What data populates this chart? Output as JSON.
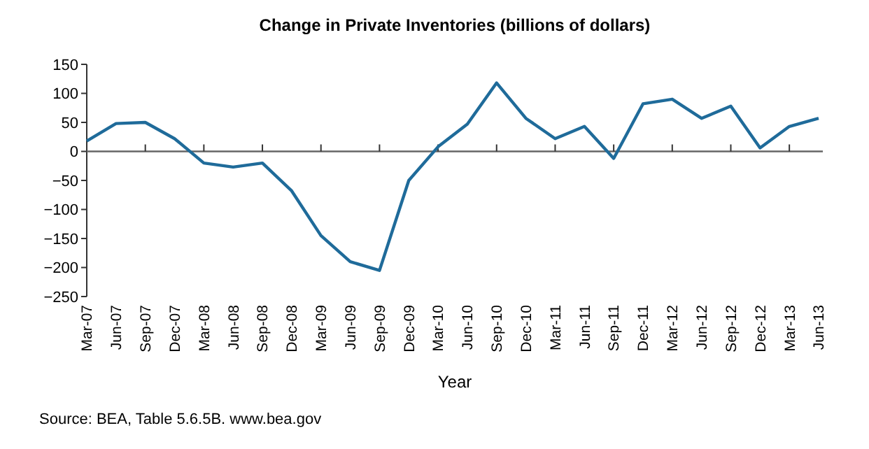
{
  "chart_data": {
    "type": "line",
    "title": "Change in Private Inventories (billions of dollars)",
    "xlabel": "Year",
    "categories": [
      "Mar-07",
      "Jun-07",
      "Sep-07",
      "Dec-07",
      "Mar-08",
      "Jun-08",
      "Sep-08",
      "Dec-08",
      "Mar-09",
      "Jun-09",
      "Sep-09",
      "Dec-09",
      "Mar-10",
      "Jun-10",
      "Sep-10",
      "Dec-10",
      "Mar-11",
      "Jun-11",
      "Sep-11",
      "Dec-11",
      "Mar-12",
      "Jun-12",
      "Sep-12",
      "Dec-12",
      "Mar-13",
      "Jun-13"
    ],
    "series": [
      {
        "color": "#1f6b9a",
        "values": [
          18,
          48,
          50,
          22,
          -20,
          -27,
          -20,
          -68,
          -145,
          -190,
          -205,
          -50,
          8,
          47,
          118,
          57,
          22,
          43,
          -12,
          82,
          90,
          57,
          78,
          6,
          43,
          57
        ]
      }
    ],
    "ylim": [
      -250,
      150
    ],
    "yticks": [
      -250,
      -200,
      -150,
      -100,
      -50,
      0,
      50,
      100,
      150
    ],
    "marker": "none",
    "line_style": "solid",
    "annotations": [
      "Source: BEA, Table 5.6.5B. www.bea.gov"
    ]
  }
}
